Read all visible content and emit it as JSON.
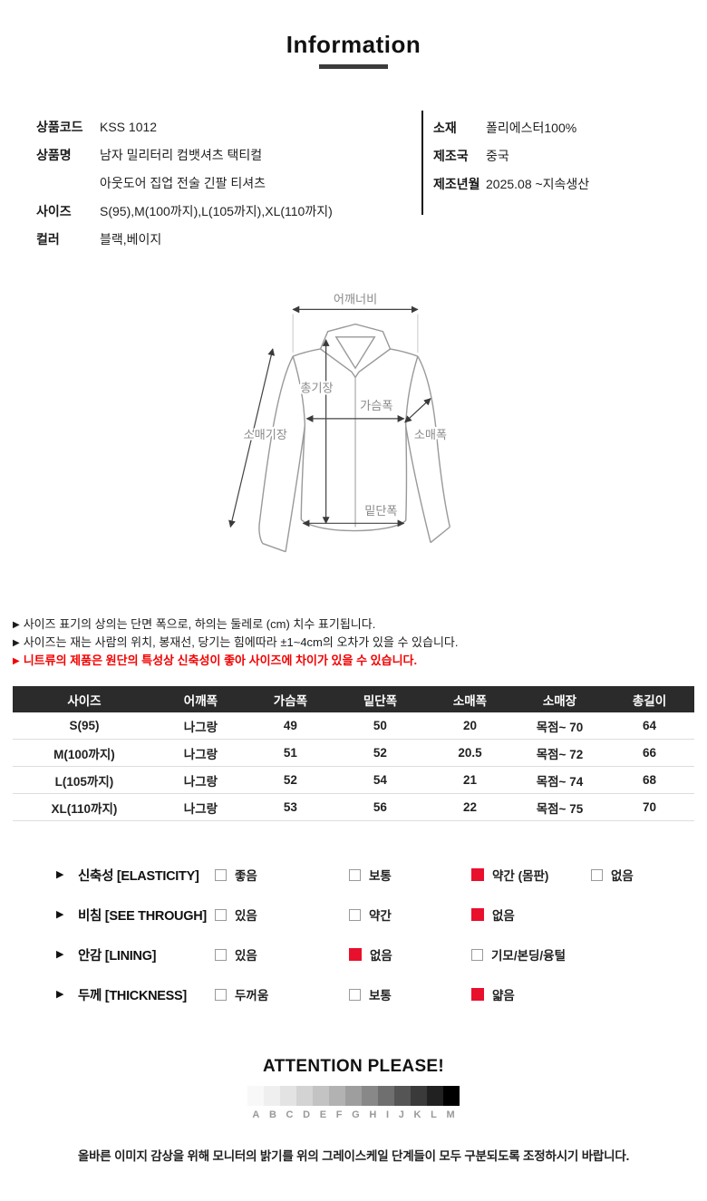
{
  "title": "Information",
  "product": {
    "left": [
      {
        "label": "상품코드",
        "value": "KSS  1012"
      },
      {
        "label": "상품명",
        "value": "남자 밀리터리 컴뱃셔츠 택티컬"
      },
      {
        "label": "",
        "value": "아웃도어 집업 전술 긴팔 티셔츠"
      },
      {
        "label": "사이즈",
        "value": "S(95),M(100까지),L(105까지),XL(110까지)"
      },
      {
        "label": "컬러",
        "value": "블랙,베이지"
      }
    ],
    "right": [
      {
        "label": "소재",
        "value": "폴리에스터100%"
      },
      {
        "label": "제조국",
        "value": "중국"
      },
      {
        "label": "제조년월",
        "value": "2025.08 ~지속생산"
      }
    ]
  },
  "diagram": {
    "labels": {
      "shoulder": "어깨너비",
      "length": "총기장",
      "chest": "가슴폭",
      "sleeve_width": "소매폭",
      "sleeve_length": "소매기장",
      "hem": "밑단폭"
    }
  },
  "notes": [
    {
      "text": "사이즈 표기의 상의는 단면 폭으로, 하의는 둘레로 (cm) 치수 표기됩니다.",
      "red": false
    },
    {
      "text": "사이즈는 재는 사람의 위치, 봉재선, 당기는 힘에따라  ±1~4cm의 오차가 있을 수 있습니다.",
      "red": false
    },
    {
      "text": "니트류의 제품은 원단의 특성상 신축성이 좋아 사이즈에 차이가 있을 수 있습니다.",
      "red": true
    }
  ],
  "size_table": {
    "headers": [
      "사이즈",
      "어깨폭",
      "가슴폭",
      "밑단폭",
      "소매폭",
      "소매장",
      "총길이"
    ],
    "rows": [
      [
        "S(95)",
        "나그랑",
        "49",
        "50",
        "20",
        "목점~ 70",
        "64"
      ],
      [
        "M(100까지)",
        "나그랑",
        "51",
        "52",
        "20.5",
        "목점~ 72",
        "66"
      ],
      [
        "L(105까지)",
        "나그랑",
        "52",
        "54",
        "21",
        "목점~ 74",
        "68"
      ],
      [
        "XL(110까지)",
        "나그랑",
        "53",
        "56",
        "22",
        "목점~ 75",
        "70"
      ]
    ]
  },
  "features": [
    {
      "label": "신축성 [ELASTICITY]",
      "options": [
        {
          "label": "좋음",
          "checked": false
        },
        {
          "label": "보통",
          "checked": false
        },
        {
          "label": "약간 (몸판)",
          "checked": true
        },
        {
          "label": "없음",
          "checked": false
        }
      ]
    },
    {
      "label": "비침 [SEE THROUGH]",
      "options": [
        {
          "label": "있음",
          "checked": false
        },
        {
          "label": "약간",
          "checked": false
        },
        {
          "label": "없음",
          "checked": true
        }
      ]
    },
    {
      "label": "안감 [LINING]",
      "options": [
        {
          "label": "있음",
          "checked": false
        },
        {
          "label": "없음",
          "checked": true
        },
        {
          "label": "기모/본딩/융털",
          "checked": false
        }
      ]
    },
    {
      "label": "두께 [THICKNESS]",
      "options": [
        {
          "label": "두꺼움",
          "checked": false
        },
        {
          "label": "보통",
          "checked": false
        },
        {
          "label": "얇음",
          "checked": true
        }
      ]
    }
  ],
  "attention": {
    "title": "ATTENTION PLEASE!",
    "letters": [
      "A",
      "B",
      "C",
      "D",
      "E",
      "F",
      "G",
      "H",
      "I",
      "J",
      "K",
      "L",
      "M"
    ],
    "colors": [
      "#f8f8f8",
      "#efefef",
      "#e3e3e3",
      "#d3d3d3",
      "#c3c3c3",
      "#b2b2b2",
      "#9e9e9e",
      "#888888",
      "#6f6f6f",
      "#555555",
      "#3a3a3a",
      "#212121",
      "#000000"
    ],
    "note": "올바른 이미지 감상을 위해 모니터의 밝기를 위의 그레이스케일 단계들이 모두 구분되도록 조정하시기 바랍니다."
  },
  "colors": {
    "accent_red": "#e8102d",
    "note_red": "#f40000",
    "table_header_bg": "#2b2b2b"
  }
}
